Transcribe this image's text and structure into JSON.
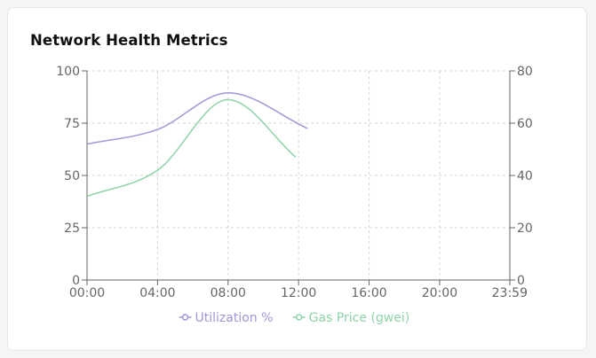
{
  "card": {
    "title": "Network Health Metrics"
  },
  "chart_data": {
    "type": "line",
    "title": "Network Health Metrics",
    "x_ticks": [
      "00:00",
      "04:00",
      "08:00",
      "12:00",
      "16:00",
      "20:00",
      "23:59"
    ],
    "x_range": [
      "00:00",
      "23:59"
    ],
    "y_left": {
      "ticks": [
        0,
        25,
        50,
        75,
        100
      ],
      "range": [
        0,
        100
      ]
    },
    "y_right": {
      "ticks": [
        0,
        20,
        40,
        60,
        80
      ],
      "range": [
        0,
        80
      ]
    },
    "grid": true,
    "legend_position": "bottom",
    "series": [
      {
        "name": "Utilization %",
        "axis": "left",
        "color": "#a097d8",
        "x": [
          "00:00",
          "04:00",
          "08:00",
          "12:30"
        ],
        "values": [
          65,
          72,
          89.5,
          72.5
        ]
      },
      {
        "name": "Gas Price (gwei)",
        "axis": "right",
        "color": "#8fd3a8",
        "x": [
          "00:00",
          "04:00",
          "08:00",
          "11:50"
        ],
        "values": [
          32,
          42,
          69,
          47
        ]
      }
    ]
  }
}
